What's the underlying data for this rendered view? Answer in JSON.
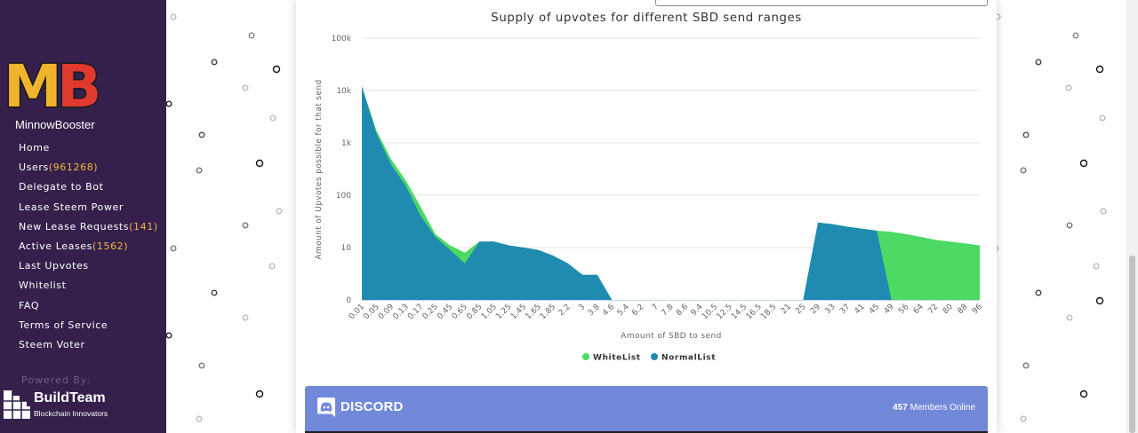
{
  "sidebar": {
    "logo_text": "MB",
    "brand": "MinnowBooster",
    "nav": [
      {
        "label": "Home",
        "count": ""
      },
      {
        "label": "Users",
        "count": "(961268)"
      },
      {
        "label": "Delegate to Bot",
        "count": ""
      },
      {
        "label": "Lease Steem Power",
        "count": ""
      },
      {
        "label": "New Lease Requests",
        "count": "(141)"
      },
      {
        "label": "Active Leases",
        "count": "(1562)"
      },
      {
        "label": "Last Upvotes",
        "count": ""
      },
      {
        "label": "Whitelist",
        "count": ""
      },
      {
        "label": "FAQ",
        "count": ""
      },
      {
        "label": "Terms of Service",
        "count": ""
      },
      {
        "label": "Steem Voter",
        "count": ""
      }
    ],
    "powered_by": "Powered By:",
    "buildteam": {
      "name": "BuildTeam",
      "tagline": "Blockchain Innovators"
    }
  },
  "chart_data": {
    "type": "area",
    "title": "Supply of upvotes for different SBD send ranges",
    "xlabel": "Amount of SBD to send",
    "ylabel": "Amount of Upvotes possible for that send",
    "y_scale": "log",
    "y_ticks": [
      "0",
      "10",
      "100",
      "1k",
      "10k",
      "100k"
    ],
    "x_tick_labels": [
      "0.01",
      "0.05",
      "0.09",
      "0.13",
      "0.17",
      "0.25",
      "0.45",
      "0.65",
      "0.85",
      "1.05",
      "1.25",
      "1.45",
      "1.65",
      "1.85",
      "2.2",
      "3",
      "3.8",
      "4.6",
      "5.4",
      "6.2",
      "7",
      "7.8",
      "8.6",
      "9.4",
      "10.5",
      "12.5",
      "14.5",
      "16.5",
      "18.5",
      "21",
      "25",
      "29",
      "33",
      "37",
      "41",
      "45",
      "49",
      "56",
      "64",
      "72",
      "80",
      "88",
      "96"
    ],
    "grid": true,
    "legend_position": "bottom",
    "colors": {
      "WhiteList": "#4cd964",
      "NormalList": "#1f8bb0"
    },
    "series": [
      {
        "name": "WhiteList",
        "values": [
          12000,
          1700,
          480,
          190,
          60,
          18,
          11,
          8,
          13,
          13,
          11,
          10,
          9,
          7,
          5,
          3,
          3,
          1,
          1,
          1,
          1,
          0,
          0,
          0,
          0,
          0,
          0,
          0,
          0,
          0,
          0,
          30,
          28,
          25,
          23,
          21,
          20,
          18,
          16,
          14,
          13,
          12,
          11
        ]
      },
      {
        "name": "NormalList",
        "values": [
          12000,
          1500,
          380,
          150,
          40,
          16,
          9,
          5,
          13,
          13,
          11,
          10,
          9,
          7,
          5,
          3,
          3,
          1,
          1,
          1,
          1,
          0,
          0,
          0,
          0,
          0,
          0,
          0,
          0,
          0,
          0,
          30,
          28,
          25,
          23,
          21,
          0,
          0,
          0,
          0,
          0,
          0,
          0
        ]
      }
    ]
  },
  "discord": {
    "brand": "DISCORD",
    "members_count": "457",
    "members_label": "Members Online"
  }
}
